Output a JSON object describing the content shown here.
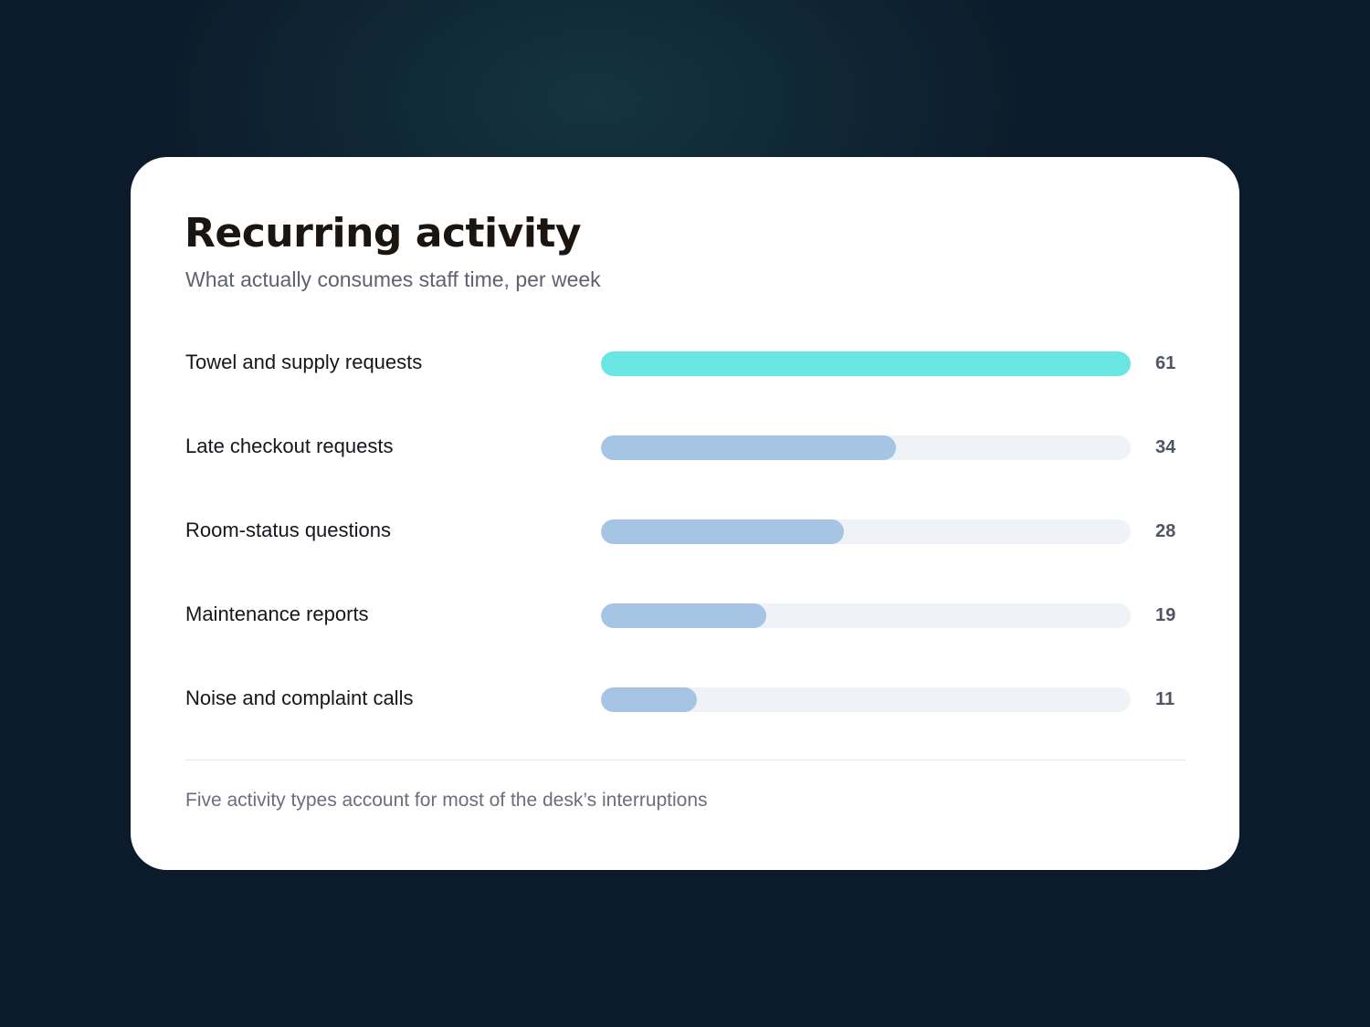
{
  "card": {
    "title": "Recurring activity",
    "subtitle": "What actually consumes staff time, per week",
    "footnote": "Five activity types account for most of the desk’s interruptions"
  },
  "colors": {
    "background": "#0c1b2b",
    "highlight_bar": "#69e6e2",
    "standard_bar": "#a6c5e4",
    "track": "#eff3f8"
  },
  "chart_data": {
    "type": "bar",
    "orientation": "horizontal",
    "title": "Recurring activity",
    "subtitle": "What actually consumes staff time, per week",
    "categories": [
      "Towel and supply requests",
      "Late checkout requests",
      "Room-status questions",
      "Maintenance reports",
      "Noise and complaint calls"
    ],
    "values": [
      61,
      34,
      28,
      19,
      11
    ],
    "value_labels": [
      "61",
      "34",
      "28",
      "19",
      "11"
    ],
    "highlighted_index": 0,
    "xlim": [
      0,
      61
    ],
    "grid": false,
    "legend": "none"
  }
}
